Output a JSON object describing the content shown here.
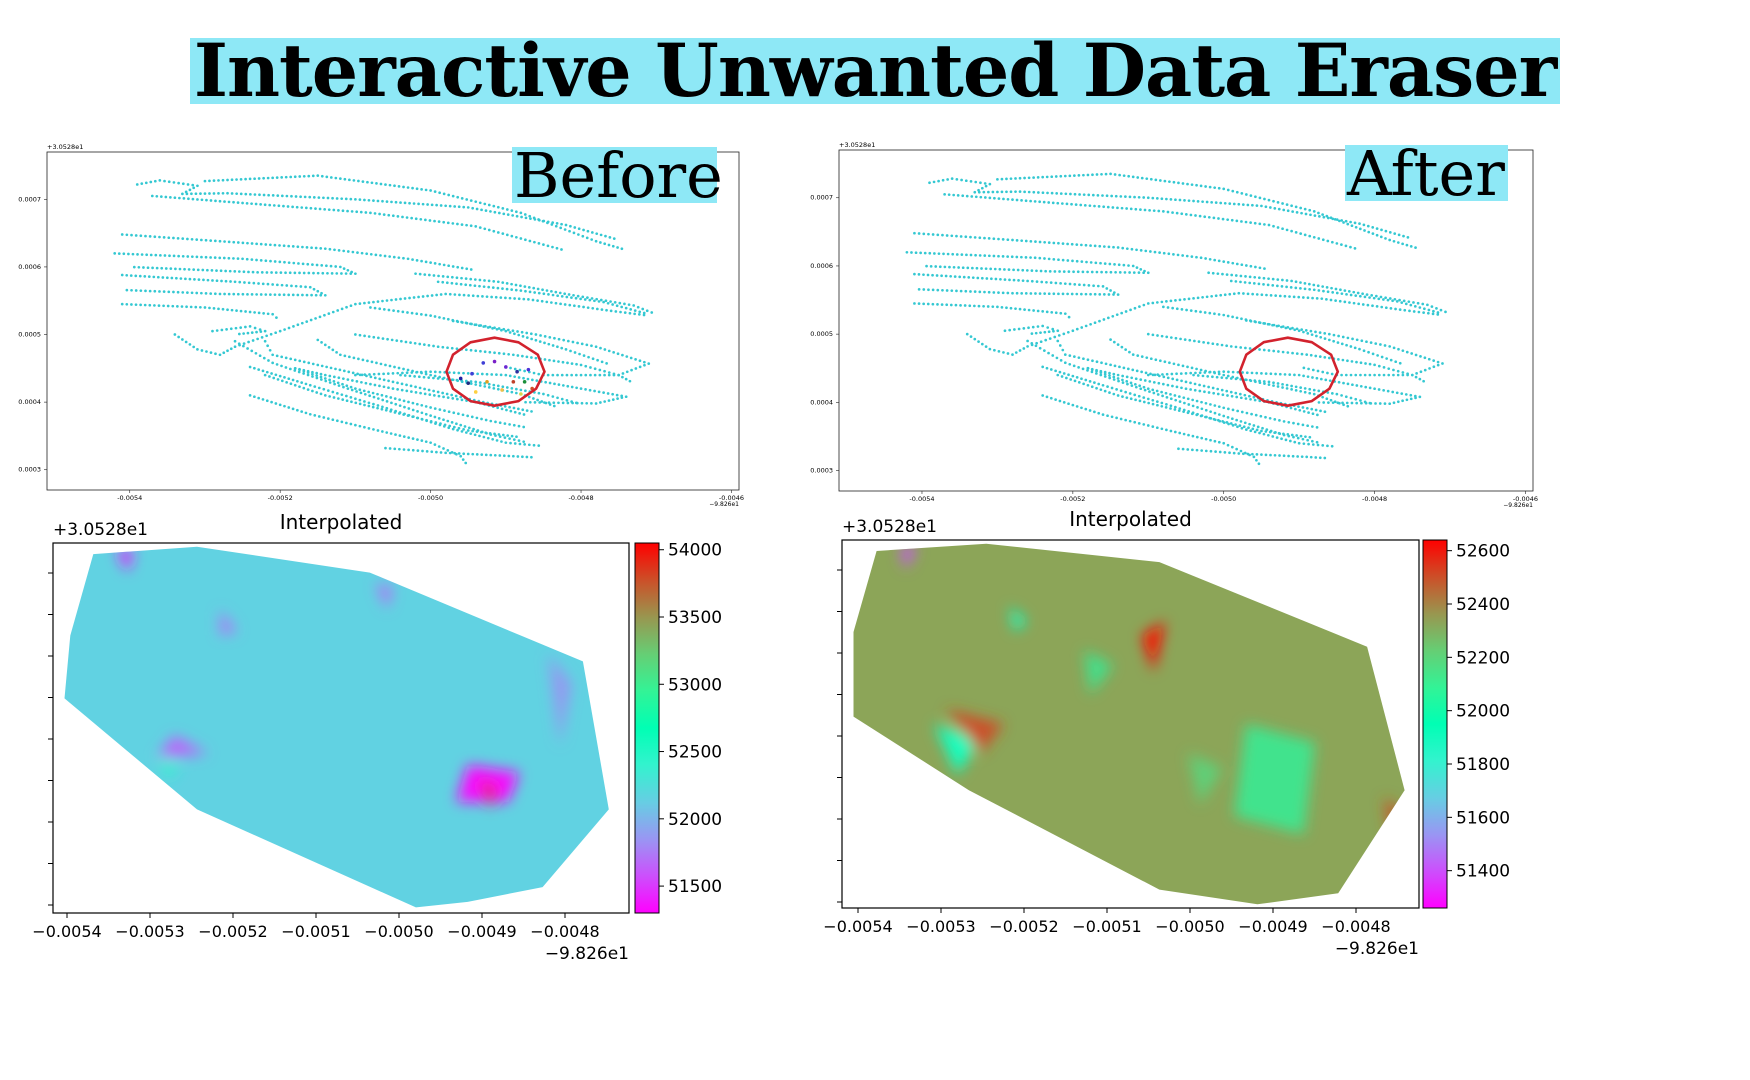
{
  "title": "Interactive Unwanted Data Eraser",
  "chart_data": [
    {
      "id": "before-scatter",
      "type": "scatter",
      "label": "Before",
      "offset_x_text": "−9.826e1",
      "offset_y_text": "+3.0528e1",
      "x_ticks": [
        "-0.0054",
        "-0.0052",
        "-0.0050",
        "-0.0048",
        "-0.0046"
      ],
      "y_ticks": [
        "0.0007",
        "0.0006",
        "0.0005",
        "0.0004",
        "0.0003"
      ],
      "xlim": [
        -0.00551,
        -0.00459
      ],
      "ylim": [
        0.00027,
        0.00077
      ],
      "point_color": "#34c8d2",
      "selection_color": "#d2222d",
      "outliers_present": true
    },
    {
      "id": "after-scatter",
      "type": "scatter",
      "label": "After",
      "offset_x_text": "−9.826e1",
      "offset_y_text": "+3.0528e1",
      "x_ticks": [
        "-0.0054",
        "-0.0052",
        "-0.0050",
        "-0.0048",
        "-0.0046"
      ],
      "y_ticks": [
        "0.0007",
        "0.0006",
        "0.0005",
        "0.0004",
        "0.0003"
      ],
      "xlim": [
        -0.00551,
        -0.00459
      ],
      "ylim": [
        0.00027,
        0.00077
      ],
      "point_color": "#34c8d2",
      "selection_color": "#d2222d",
      "outliers_present": false
    },
    {
      "id": "before-heatmap",
      "type": "heatmap",
      "title": "Interpolated",
      "offset_y_text": "+3.0528e1",
      "offset_x_text": "−9.826e1",
      "x_ticks": [
        "-0.0054",
        "-0.0053",
        "-0.0052",
        "-0.0051",
        "-0.0050",
        "-0.0049",
        "-0.0048"
      ],
      "colorbar_ticks": [
        54000,
        53500,
        53000,
        52500,
        52000,
        51500
      ],
      "colorbar_range": [
        51300,
        54050
      ],
      "base_value": 52150,
      "colormap": "rainbow"
    },
    {
      "id": "after-heatmap",
      "type": "heatmap",
      "title": "Interpolated",
      "offset_y_text": "+3.0528e1",
      "offset_x_text": "−9.826e1",
      "x_ticks": [
        "-0.0054",
        "-0.0053",
        "-0.0052",
        "-0.0051",
        "-0.0050",
        "-0.0049",
        "-0.0048"
      ],
      "colorbar_ticks": [
        52600,
        52400,
        52200,
        52000,
        51800,
        51600,
        51400
      ],
      "colorbar_range": [
        51260,
        52640
      ],
      "base_value": 52330,
      "colormap": "rainbow"
    }
  ]
}
